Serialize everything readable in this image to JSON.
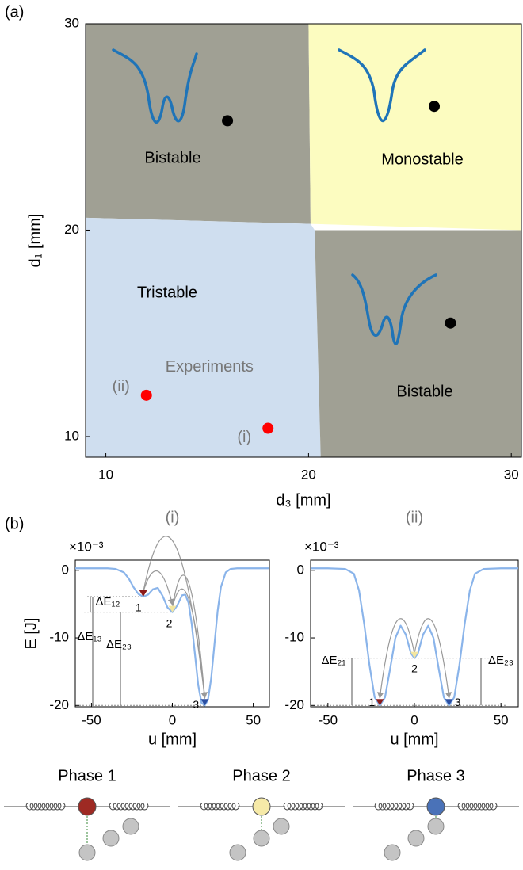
{
  "panel_labels": [
    "(a)",
    "(b)"
  ],
  "chart_data": [
    {
      "type": "region",
      "xlabel": "d₃ [mm]",
      "ylabel": "d₁ [mm]",
      "xlim": [
        9,
        30.5
      ],
      "ylim": [
        9,
        30
      ],
      "xticks": [
        10,
        20,
        30
      ],
      "yticks": [
        10,
        20,
        30
      ],
      "regions": [
        {
          "label": "Bistable",
          "color": "#a0a094",
          "x": [
            9,
            20,
            20.1,
            9
          ],
          "y": [
            30,
            30,
            20.3,
            20.6
          ]
        },
        {
          "label": "Monostable",
          "color": "#fcfcc0",
          "x": [
            20,
            30.5,
            30.5,
            20.1
          ],
          "y": [
            30,
            30,
            20,
            20.3
          ]
        },
        {
          "label": "Tristable",
          "color": "#cfdeef",
          "x": [
            9,
            20.1,
            20.3,
            20.6,
            9
          ],
          "y": [
            20.6,
            20.3,
            20,
            9,
            9
          ]
        },
        {
          "label": "Bistable",
          "color": "#a0a094",
          "x": [
            20.3,
            30.5,
            30.5,
            20.6
          ],
          "y": [
            20,
            20,
            9,
            9
          ]
        }
      ],
      "series": [
        {
          "color": "#000000",
          "x": [
            16,
            26.2,
            27
          ],
          "y": [
            25.3,
            26,
            15.5
          ]
        },
        {
          "name": "Experiments",
          "color": "#ff0000",
          "x": [
            12,
            18
          ],
          "y": [
            12,
            10.4
          ],
          "point_labels": [
            "(ii)",
            "(i)"
          ]
        }
      ]
    },
    {
      "type": "line",
      "title": "(i)",
      "xlabel": "u [mm]",
      "ylabel": "E [J]",
      "y_multiplier": "×10⁻³",
      "xlim": [
        -60,
        60
      ],
      "ylim": [
        -20.2,
        1.5
      ],
      "xticks": [
        -50,
        0,
        50
      ],
      "yticks": [
        0,
        -10,
        -20
      ],
      "series": [
        {
          "color": "#8ab4ea",
          "x": [
            -60,
            -50,
            -40,
            -35,
            -30,
            -27,
            -24,
            -21,
            -18,
            -15,
            -12,
            -9,
            -6,
            -3,
            0,
            3,
            6,
            8,
            10,
            12,
            14,
            16,
            18,
            20,
            22,
            24,
            26,
            28,
            30,
            33,
            36,
            40,
            50,
            60
          ],
          "values": [
            0.3,
            0.3,
            0.3,
            0.2,
            -0.3,
            -1.2,
            -2.5,
            -3.5,
            -3.9,
            -3.6,
            -2.8,
            -2.6,
            -3.8,
            -5.5,
            -6.2,
            -5.2,
            -3.7,
            -3.6,
            -4.8,
            -8,
            -12.5,
            -17,
            -19.6,
            -20,
            -19.2,
            -16,
            -11,
            -6,
            -2.5,
            -0.3,
            0.2,
            0.3,
            0.3,
            0.3
          ]
        }
      ],
      "states": {
        "labels": [
          "1",
          "2",
          "3"
        ],
        "colors": [
          "#8b1a1a",
          "#f3e6a0",
          "#2b4fa3"
        ],
        "x": [
          -18,
          0,
          20
        ],
        "values": [
          -3.9,
          -6.2,
          -20
        ]
      },
      "annotations": [
        "ΔE₁₂",
        "ΔE₁₃",
        "ΔE₂₃"
      ]
    },
    {
      "type": "line",
      "title": "(ii)",
      "xlabel": "u [mm]",
      "y_multiplier": "×10⁻³",
      "xlim": [
        -60,
        60
      ],
      "ylim": [
        -20.2,
        1.5
      ],
      "xticks": [
        -50,
        0,
        50
      ],
      "yticks": [
        0,
        -10,
        -20
      ],
      "series": [
        {
          "color": "#8ab4ea",
          "x": [
            -60,
            -50,
            -40,
            -35,
            -32,
            -29,
            -26,
            -23,
            -20,
            -17,
            -14,
            -11,
            -8,
            -5,
            -2,
            0,
            2,
            5,
            8,
            11,
            14,
            17,
            20,
            23,
            26,
            29,
            32,
            35,
            40,
            50,
            60
          ],
          "values": [
            0.3,
            0.3,
            0.2,
            -0.5,
            -3,
            -8,
            -14,
            -18.8,
            -20,
            -18.8,
            -14.5,
            -10,
            -8.2,
            -9.5,
            -12.3,
            -13,
            -12.3,
            -9.5,
            -8.2,
            -10,
            -14.5,
            -18.8,
            -20,
            -18.8,
            -14,
            -8,
            -3,
            -0.5,
            0.2,
            0.3,
            0.3
          ]
        }
      ],
      "states": {
        "labels": [
          "1",
          "2",
          "3"
        ],
        "colors": [
          "#8b1a1a",
          "#f3e6a0",
          "#2b4fa3"
        ],
        "x": [
          -20,
          0,
          20
        ],
        "values": [
          -20,
          -13,
          -20
        ]
      },
      "annotations": [
        "ΔE₂₁",
        "ΔE₂₃"
      ]
    }
  ],
  "phases": [
    {
      "label": "Phase 1",
      "color": "#9e2a23"
    },
    {
      "label": "Phase 2",
      "color": "#f6eaa8"
    },
    {
      "label": "Phase 3",
      "color": "#4a72b8"
    }
  ]
}
